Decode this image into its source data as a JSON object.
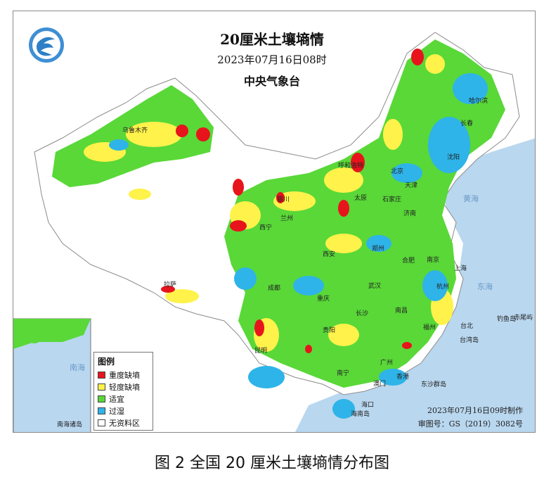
{
  "map": {
    "title": "20厘米土壤墒情",
    "datetime": "2023年07月16日08时",
    "agency": "中央气象台",
    "issue_time": "2023年07月16日09时制作",
    "review_number": "审图号：GS（2019）3082号",
    "caption": "图 2  全国 20 厘米土壤墒情分布图"
  },
  "legend": {
    "title": "图例",
    "items": [
      {
        "label": "重度缺墒",
        "color": "#e8141c"
      },
      {
        "label": "轻度缺墒",
        "color": "#fff24a"
      },
      {
        "label": "适宜",
        "color": "#59d838"
      },
      {
        "label": "过湿",
        "color": "#2eb4e8"
      },
      {
        "label": "无资料区",
        "color": "#ffffff"
      }
    ]
  },
  "colors": {
    "sea": "#b9d7ef",
    "land_outside": "#ffffff",
    "border": "#8c8c8c"
  },
  "cities": [
    "哈尔滨",
    "长春",
    "沈阳",
    "呼和浩特",
    "北京",
    "天津",
    "石家庄",
    "太原",
    "银川",
    "西宁",
    "兰州",
    "济南",
    "郑州",
    "西安",
    "合肥",
    "南京",
    "上海",
    "武汉",
    "杭州",
    "成都",
    "重庆",
    "长沙",
    "南昌",
    "福州",
    "贵阳",
    "昆明",
    "南宁",
    "广州",
    "香港",
    "澳门",
    "海口",
    "台北",
    "拉萨",
    "乌鲁木齐"
  ],
  "places": [
    "黄海",
    "东海",
    "南海",
    "台湾岛",
    "钓鱼岛",
    "赤尾屿",
    "东沙群岛",
    "海南岛",
    "南海诸岛"
  ]
}
